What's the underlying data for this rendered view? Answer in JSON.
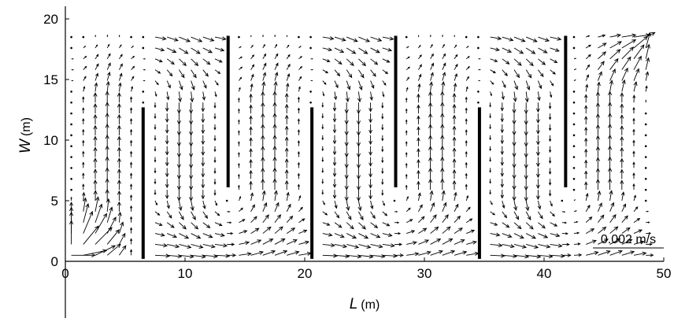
{
  "chart_data": {
    "type": "quiver",
    "x_axis": {
      "symbol": "L",
      "unit": "(m)",
      "range": [
        0,
        50
      ],
      "ticks": [
        0,
        10,
        20,
        30,
        40,
        50
      ],
      "tick_labels": [
        "0",
        "10",
        "20",
        "30",
        "40",
        "50"
      ]
    },
    "y_axis": {
      "symbol": "W",
      "unit": "(m)",
      "range": [
        0,
        20
      ],
      "ticks": [
        0,
        5,
        10,
        15,
        20
      ],
      "tick_labels": [
        "0",
        "5",
        "10",
        "15",
        "20"
      ]
    },
    "grid": false,
    "baffles": [
      {
        "x": 6.5,
        "y0": 0.2,
        "y1": 12.7
      },
      {
        "x": 13.6,
        "y0": 6.1,
        "y1": 18.6
      },
      {
        "x": 20.6,
        "y0": 0.2,
        "y1": 12.7
      },
      {
        "x": 27.6,
        "y0": 6.1,
        "y1": 18.6
      },
      {
        "x": 34.6,
        "y0": 0.2,
        "y1": 12.7
      },
      {
        "x": 41.8,
        "y0": 6.1,
        "y1": 18.6
      }
    ],
    "domain": {
      "x": [
        0.5,
        48.7
      ],
      "y": [
        0.5,
        18.6
      ]
    },
    "inlet": {
      "x": 0.5,
      "y": 0.5
    },
    "outlet": {
      "x": 48.7,
      "y": 18.6
    },
    "reference_vector": {
      "label": "0.002 m/s",
      "speed": 0.002,
      "position": "bottom-right"
    },
    "colors": {
      "arrow": "#000000",
      "baffle": "#000000",
      "axis": "#000000"
    }
  }
}
